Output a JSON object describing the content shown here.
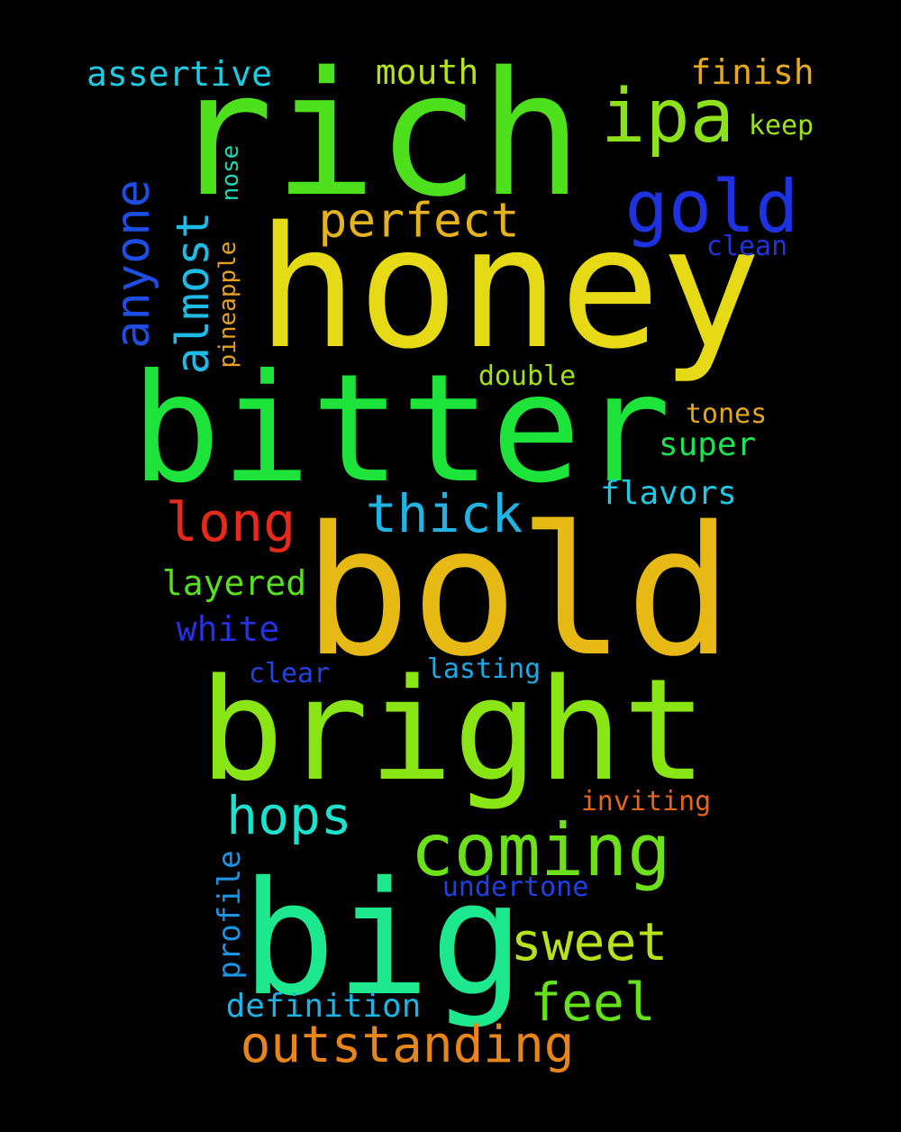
{
  "words": [
    {
      "text": "rich",
      "color": "#4ee01c"
    },
    {
      "text": "honey",
      "color": "#e6da17"
    },
    {
      "text": "bitter",
      "color": "#1ee33a"
    },
    {
      "text": "bold",
      "color": "#e7b914"
    },
    {
      "text": "bright",
      "color": "#8ae514"
    },
    {
      "text": "big",
      "color": "#1de88d"
    },
    {
      "text": "coming",
      "color": "#6ee01b"
    },
    {
      "text": "ipa",
      "color": "#8de11b"
    },
    {
      "text": "gold",
      "color": "#1e32e1"
    },
    {
      "text": "perfect",
      "color": "#e4b11f"
    },
    {
      "text": "anyone",
      "color": "#1e4de1"
    },
    {
      "text": "almost",
      "color": "#1dbbe6"
    },
    {
      "text": "long",
      "color": "#e5291a"
    },
    {
      "text": "thick",
      "color": "#22b3e3"
    },
    {
      "text": "hops",
      "color": "#1ce1cc"
    },
    {
      "text": "sweet",
      "color": "#b6e21a"
    },
    {
      "text": "feel",
      "color": "#64e01c"
    },
    {
      "text": "outstanding",
      "color": "#e8851a"
    },
    {
      "text": "assertive",
      "color": "#1fcbe2"
    },
    {
      "text": "mouth",
      "color": "#b5e21b"
    },
    {
      "text": "finish",
      "color": "#e6a81c"
    },
    {
      "text": "keep",
      "color": "#9be31b"
    },
    {
      "text": "nose",
      "color": "#1dd7b1"
    },
    {
      "text": "pineapple",
      "color": "#e3a123"
    },
    {
      "text": "clean",
      "color": "#2233d9"
    },
    {
      "text": "double",
      "color": "#a3e11b"
    },
    {
      "text": "tones",
      "color": "#e6a61b"
    },
    {
      "text": "super",
      "color": "#1ee155"
    },
    {
      "text": "flavors",
      "color": "#1ec8e6"
    },
    {
      "text": "layered",
      "color": "#58e01c"
    },
    {
      "text": "white",
      "color": "#2730e3"
    },
    {
      "text": "clear",
      "color": "#2442e0"
    },
    {
      "text": "lasting",
      "color": "#1fa8e5"
    },
    {
      "text": "inviting",
      "color": "#e5651b"
    },
    {
      "text": "undertone",
      "color": "#2140e3"
    },
    {
      "text": "profile",
      "color": "#1e94e6"
    },
    {
      "text": "definition",
      "color": "#1eb3e6"
    }
  ]
}
